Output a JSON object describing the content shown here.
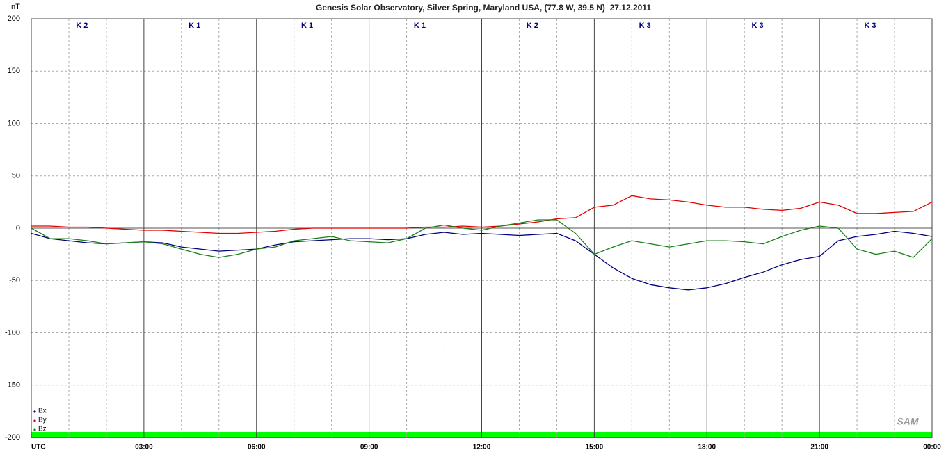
{
  "chart_data": {
    "type": "line",
    "title": "Genesis Solar Observatory, Silver Spring, Maryland USA, (77.8 W, 39.5 N)  27.12.2011",
    "y_label": "nT",
    "logo": "SAM",
    "k_labels": [
      "K 2",
      "K 1",
      "K 1",
      "K 1",
      "K 2",
      "K 3",
      "K 3",
      "K 3"
    ],
    "x": [
      0,
      0.5,
      1,
      1.5,
      2,
      2.5,
      3,
      3.5,
      4,
      4.5,
      5,
      5.5,
      6,
      6.5,
      7,
      7.5,
      8,
      8.5,
      9,
      9.5,
      10,
      10.5,
      11,
      11.5,
      12,
      12.5,
      13,
      13.5,
      14,
      14.5,
      15,
      15.5,
      16,
      16.5,
      17,
      17.5,
      18,
      18.5,
      19,
      19.5,
      20,
      20.5,
      21,
      21.5,
      22,
      22.5,
      23,
      23.5,
      24
    ],
    "series": [
      {
        "name": "Bx",
        "color": "#000080",
        "values": [
          -5,
          -10,
          -12,
          -14,
          -15,
          -14,
          -13,
          -14,
          -18,
          -20,
          -22,
          -21,
          -20,
          -16,
          -13,
          -12,
          -11,
          -10,
          -10,
          -11,
          -10,
          -6,
          -4,
          -6,
          -5,
          -6,
          -7,
          -6,
          -5,
          -12,
          -25,
          -38,
          -48,
          -54,
          -57,
          -59,
          -57,
          -53,
          -47,
          -42,
          -35,
          -30,
          -27,
          -12,
          -8,
          -6,
          -3,
          -5,
          -8
        ]
      },
      {
        "name": "By",
        "color": "#e00000",
        "values": [
          2,
          2,
          1,
          1,
          0,
          -1,
          -2,
          -2,
          -3,
          -4,
          -5,
          -5,
          -4,
          -3,
          -1,
          0,
          0,
          0,
          0,
          0,
          0,
          1,
          1,
          2,
          1,
          2,
          4,
          6,
          9,
          10,
          20,
          22,
          31,
          28,
          27,
          25,
          22,
          20,
          20,
          18,
          17,
          19,
          25,
          22,
          14,
          14,
          15,
          16,
          25
        ]
      },
      {
        "name": "Bz",
        "color": "#1a7f1a",
        "values": [
          0,
          -10,
          -10,
          -12,
          -15,
          -14,
          -13,
          -15,
          -20,
          -25,
          -28,
          -25,
          -20,
          -18,
          -12,
          -10,
          -8,
          -12,
          -13,
          -14,
          -10,
          0,
          3,
          0,
          -2,
          2,
          5,
          8,
          8,
          -5,
          -25,
          -18,
          -12,
          -15,
          -18,
          -15,
          -12,
          -12,
          -13,
          -15,
          -8,
          -2,
          2,
          0,
          -20,
          -25,
          -22,
          -28,
          -10
        ]
      }
    ],
    "xlim": [
      0,
      24
    ],
    "ylim": [
      -200,
      200
    ],
    "yticks": [
      -200,
      -150,
      -100,
      -50,
      0,
      50,
      100,
      150,
      200
    ],
    "xticks": [
      {
        "value": 0,
        "label": "UTC"
      },
      {
        "value": 3,
        "label": "03:00"
      },
      {
        "value": 6,
        "label": "06:00"
      },
      {
        "value": 9,
        "label": "09:00"
      },
      {
        "value": 12,
        "label": "12:00"
      },
      {
        "value": 15,
        "label": "15:00"
      },
      {
        "value": 18,
        "label": "18:00"
      },
      {
        "value": 21,
        "label": "21:00"
      },
      {
        "value": 24,
        "label": "00:00"
      }
    ],
    "x_minor_grid": [
      1,
      2,
      4,
      5,
      7,
      8,
      10,
      11,
      13,
      14,
      16,
      17,
      19,
      20,
      22,
      23
    ],
    "grid": true,
    "legend": "lower left"
  }
}
